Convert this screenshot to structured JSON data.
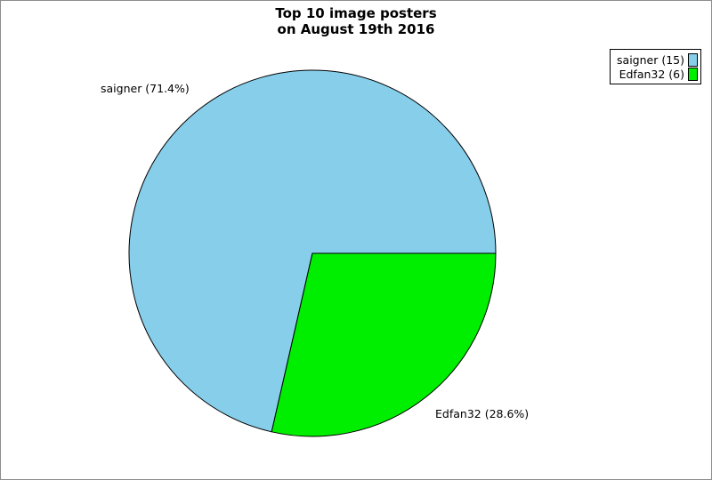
{
  "page": {
    "background": "#ffffff",
    "border_color": "#8c8c8c"
  },
  "title": {
    "line1": "Top 10 image posters",
    "line2": "on August 19th 2016"
  },
  "legend": {
    "items": [
      {
        "label": "saigner (15)",
        "color": "#87CEEB"
      },
      {
        "label": "Edfan32 (6)",
        "color": "#00EE00"
      }
    ]
  },
  "chart_data": {
    "type": "pie",
    "title": "Top 10 image posters on August 19th 2016",
    "categories": [
      "saigner",
      "Edfan32"
    ],
    "values": [
      15,
      6
    ],
    "percentages": [
      71.4,
      28.6
    ],
    "colors": [
      "#87CEEB",
      "#00EE00"
    ],
    "slice_labels": [
      "saigner (71.4%)",
      "Edfan32 (28.6%)"
    ],
    "legend_entries": [
      "saigner (15)",
      "Edfan32 (6)"
    ],
    "start_angle_deg": 0,
    "winding": "counterclockwise",
    "legend_position": "top-right",
    "outline_color": "#000000"
  }
}
